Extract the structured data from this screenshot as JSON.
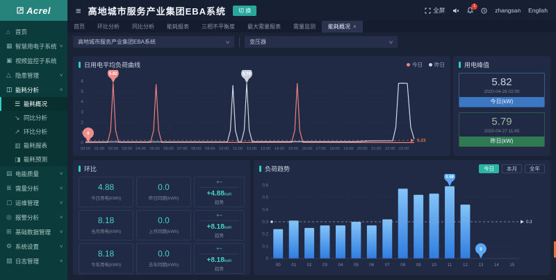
{
  "colors": {
    "accent_teal": "#2fd0c2",
    "today_red": "#ee8080",
    "yesterday_gray": "#d3d8e2",
    "balloon_blue": "#58a8f6",
    "avg_orange": "#e8784f",
    "bar_top": "#84c4f9",
    "bar_bottom": "#2f7de0"
  },
  "header": {
    "logo": "Acrel",
    "title": "高地城市服务产业集团EBA系统",
    "switch_btn": "切 换",
    "fullscreen": "全屏",
    "bell_badge": "1",
    "username": "zhangsan",
    "language": "English"
  },
  "tabs": {
    "items": [
      "首页",
      "环比分析",
      "同比分析",
      "能耗报表",
      "三相不平衡度",
      "最大需量报表",
      "需量监测"
    ],
    "active": {
      "label": "能耗概况",
      "close": "×"
    }
  },
  "filters": {
    "org": "高地城市服务产业集团EBA系统",
    "device": "变压器"
  },
  "sidebar": {
    "items": [
      {
        "id": "home",
        "label": "首页",
        "glyph": "⌂",
        "arrow": null,
        "sub": false,
        "active": false
      },
      {
        "id": "smart-power-subsystem",
        "label": "智慧用电子系统",
        "glyph": "▦",
        "arrow": "down",
        "sub": false,
        "active": false
      },
      {
        "id": "video-subsystem",
        "label": "视频监控子系统",
        "glyph": "▣",
        "arrow": null,
        "sub": false,
        "active": false
      },
      {
        "id": "hazard-management",
        "label": "隐患管理",
        "glyph": "△",
        "arrow": "down",
        "sub": false,
        "active": false
      },
      {
        "id": "energy-analysis",
        "label": "能耗分析",
        "glyph": "◫",
        "arrow": "up",
        "sub": false,
        "active": true
      },
      {
        "id": "energy-overview",
        "label": "能耗概况",
        "glyph": "☰",
        "arrow": null,
        "sub": true,
        "active": true
      },
      {
        "id": "yoy-analysis",
        "label": "同比分析",
        "glyph": "↘",
        "arrow": null,
        "sub": true,
        "active": false
      },
      {
        "id": "mom-analysis",
        "label": "环比分析",
        "glyph": "↗",
        "arrow": null,
        "sub": true,
        "active": false
      },
      {
        "id": "energy-report",
        "label": "能耗报表",
        "glyph": "▥",
        "arrow": null,
        "sub": true,
        "active": false
      },
      {
        "id": "energy-forecast",
        "label": "能耗预测",
        "glyph": "◨",
        "arrow": null,
        "sub": true,
        "active": false
      },
      {
        "id": "power-quality",
        "label": "电能质量",
        "glyph": "▤",
        "arrow": "down",
        "sub": false,
        "active": false
      },
      {
        "id": "demand-analysis",
        "label": "需量分析",
        "glyph": "≣",
        "arrow": "down",
        "sub": false,
        "active": false
      },
      {
        "id": "ops-management",
        "label": "运维管理",
        "glyph": "▢",
        "arrow": "down",
        "sub": false,
        "active": false
      },
      {
        "id": "alarm-analysis",
        "label": "报警分析",
        "glyph": "◎",
        "arrow": "down",
        "sub": false,
        "active": false
      },
      {
        "id": "basic-data-management",
        "label": "基础数据管理",
        "glyph": "⊞",
        "arrow": "down",
        "sub": false,
        "active": false
      },
      {
        "id": "system-settings",
        "label": "系统设置",
        "glyph": "⚙",
        "arrow": "down",
        "sub": false,
        "active": false
      },
      {
        "id": "log-management",
        "label": "日志管理",
        "glyph": "▧",
        "arrow": "down",
        "sub": false,
        "active": false
      }
    ]
  },
  "peak_panel": {
    "title": "用电峰值",
    "cards": [
      {
        "value": "5.82",
        "time": "2020-04-28 02:00",
        "label": "今日(kW)"
      },
      {
        "value": "5.79",
        "time": "2020-04-27 11:45",
        "label": "昨日(kW)"
      }
    ]
  },
  "huanbi_panel": {
    "title": "环比",
    "trend_top": "+--",
    "trend_label": "趋势",
    "rows": [
      {
        "value": "4.88",
        "value_label": "今日用电(kWh)",
        "compare": "0.0",
        "compare_label": "昨日同期(kWh)",
        "trend_value": "+4.88",
        "trend_unit": "kwh"
      },
      {
        "value": "8.18",
        "value_label": "当月用电(kWh)",
        "compare": "0.0",
        "compare_label": "上月同期(kWh)",
        "trend_value": "+8.18",
        "trend_unit": "kwh"
      },
      {
        "value": "8.18",
        "value_label": "今年用电(kWh)",
        "compare": "0.0",
        "compare_label": "去年同期(kWh)",
        "trend_value": "+8.18",
        "trend_unit": "kwh"
      }
    ]
  },
  "chart_data": [
    {
      "type": "line",
      "title": "日用电平均负荷曲线",
      "legend": [
        {
          "name": "今日",
          "color": "#ee8080"
        },
        {
          "name": "昨日",
          "color": "#d3d8e2"
        }
      ],
      "xlabels": [
        "00:00",
        "01:00",
        "02:00",
        "03:00",
        "04:00",
        "05:00",
        "06:00",
        "07:00",
        "08:00",
        "09:00",
        "10:00",
        "11:00",
        "12:00",
        "13:00",
        "14:00",
        "15:00",
        "16:00",
        "17:00",
        "18:00",
        "19:00",
        "20:00",
        "21:00",
        "22:00",
        "23:00"
      ],
      "x_domain": [
        0,
        23.75
      ],
      "ylim": [
        0,
        6
      ],
      "yticks": [
        0,
        1,
        2,
        3,
        4,
        5,
        6
      ],
      "avg_line": {
        "value": 0.23,
        "label": "0.23"
      },
      "series": [
        {
          "name": "今日",
          "color": "#ee8080",
          "points": [
            [
              0,
              0.03
            ],
            [
              1.6,
              0.04
            ],
            [
              1.82,
              1.2
            ],
            [
              2.0,
              5.82
            ],
            [
              2.18,
              1.2
            ],
            [
              2.4,
              0.04
            ],
            [
              4.7,
              0.04
            ],
            [
              4.92,
              1.2
            ],
            [
              5.1,
              5.7
            ],
            [
              5.28,
              1.2
            ],
            [
              5.5,
              0.04
            ],
            [
              14.9,
              0.04
            ],
            [
              15.12,
              1.2
            ],
            [
              15.3,
              5.8
            ],
            [
              15.48,
              1.2
            ],
            [
              15.7,
              0.04
            ],
            [
              23.75,
              0.03
            ]
          ]
        },
        {
          "name": "昨日",
          "color": "#d3d8e2",
          "points": [
            [
              0,
              0.08
            ],
            [
              10.25,
              0.08
            ],
            [
              10.47,
              1.2
            ],
            [
              10.65,
              5.6
            ],
            [
              10.83,
              1.2
            ],
            [
              11.05,
              0.08
            ],
            [
              11.25,
              0.08
            ],
            [
              11.47,
              1.2
            ],
            [
              11.65,
              5.79
            ],
            [
              11.83,
              1.2
            ],
            [
              12.05,
              0.1
            ],
            [
              19.5,
              0.1
            ],
            [
              20.5,
              0.18
            ],
            [
              22.2,
              0.2
            ],
            [
              22.42,
              1.5
            ],
            [
              22.62,
              5.78
            ],
            [
              22.9,
              5.8
            ],
            [
              23.25,
              5.78
            ],
            [
              23.5,
              1.5
            ],
            [
              23.75,
              0.35
            ]
          ]
        }
      ],
      "markers": [
        {
          "x": 0.2,
          "y": 0,
          "text": "0",
          "color": "#ef8c8c",
          "text_color": "#ffffff"
        },
        {
          "x": 2.0,
          "y": 5.82,
          "text": "5.82",
          "color": "#ef8c8c",
          "text_color": "#ffffff"
        },
        {
          "x": 11.65,
          "y": 5.79,
          "text": "5.79",
          "color": "#c9cfdc",
          "text_color": "#ffffff"
        }
      ]
    },
    {
      "type": "bar",
      "title": "负荷趋势",
      "buttons": [
        {
          "label": "今日",
          "active": true
        },
        {
          "label": "本月",
          "active": false
        },
        {
          "label": "全年",
          "active": false
        }
      ],
      "categories": [
        "00",
        "01",
        "02",
        "03",
        "04",
        "05",
        "06",
        "07",
        "08",
        "09",
        "10",
        "11",
        "12",
        "13",
        "14",
        "15"
      ],
      "values": [
        0.24,
        0.31,
        0.25,
        0.27,
        0.27,
        0.3,
        0.27,
        0.32,
        0.57,
        0.52,
        0.53,
        0.59,
        0.44,
        0,
        null,
        null
      ],
      "ylim": [
        0,
        0.6
      ],
      "yticks": [
        0,
        0.1,
        0.2,
        0.3,
        0.4,
        0.5,
        0.6
      ],
      "avg_line": {
        "value": 0.3,
        "label": "0.3"
      },
      "markers": [
        {
          "index": 11,
          "text": "0.59"
        },
        {
          "index": 13,
          "text": "0"
        }
      ]
    }
  ]
}
